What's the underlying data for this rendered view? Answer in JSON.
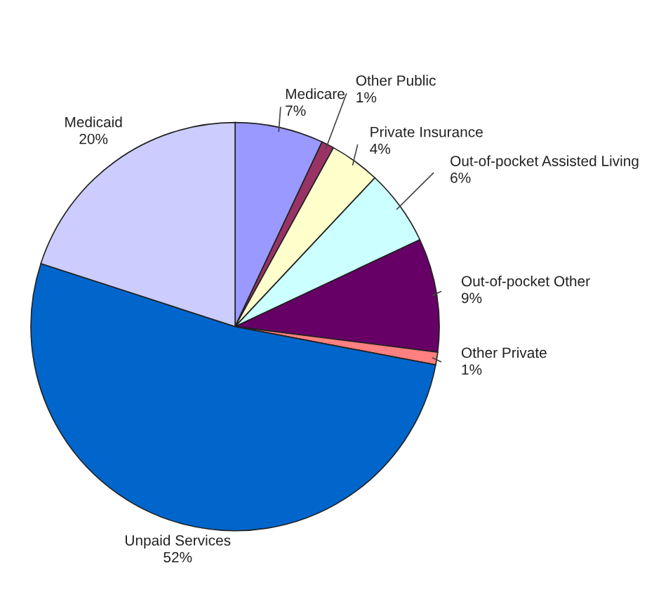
{
  "chart_data": {
    "type": "pie",
    "categories": [
      "Medicare",
      "Other Public",
      "Private Insurance",
      "Out-of-pocket Assisted Living",
      "Out-of-pocket Other",
      "Other Private",
      "Unpaid Services",
      "Medicaid"
    ],
    "values": [
      7,
      1,
      4,
      6,
      9,
      1,
      52,
      20
    ],
    "value_labels": [
      "7%",
      "1%",
      "4%",
      "6%",
      "9%",
      "1%",
      "52%",
      "20%"
    ],
    "colors": [
      "#9999ff",
      "#993366",
      "#ffffcc",
      "#ccffff",
      "#660066",
      "#ff8080",
      "#0066cc",
      "#ccccff"
    ]
  }
}
